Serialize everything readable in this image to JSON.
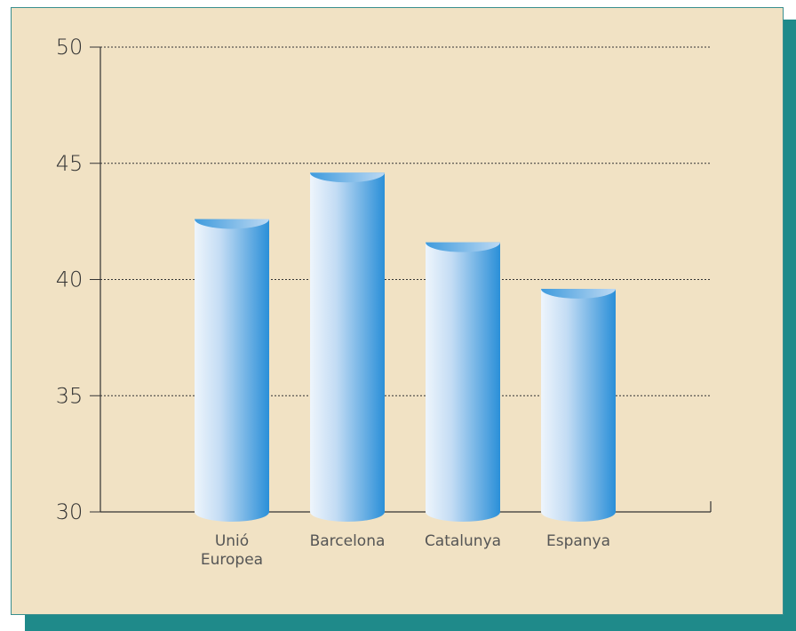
{
  "chart_data": {
    "type": "bar",
    "title": "",
    "xlabel": "",
    "ylabel": "",
    "categories": [
      [
        "Unió",
        "Europea"
      ],
      [
        "Barcelona"
      ],
      [
        "Catalunya"
      ],
      [
        "Espanya"
      ]
    ],
    "values": [
      42.6,
      44.6,
      41.6,
      39.6
    ],
    "ylim": [
      30,
      50
    ],
    "yticks": [
      30,
      35,
      40,
      45,
      50
    ],
    "grid": true,
    "bar_style": "3d-cylinder",
    "colors": {
      "background": "#f1e2c4",
      "frame_border": "#3a8f8f",
      "frame_shadow": "#1f8a8a",
      "bar_light": "#e8f2fb",
      "bar_dark": "#2a8fd8",
      "axis": "#333333",
      "grid": "#333333"
    }
  }
}
